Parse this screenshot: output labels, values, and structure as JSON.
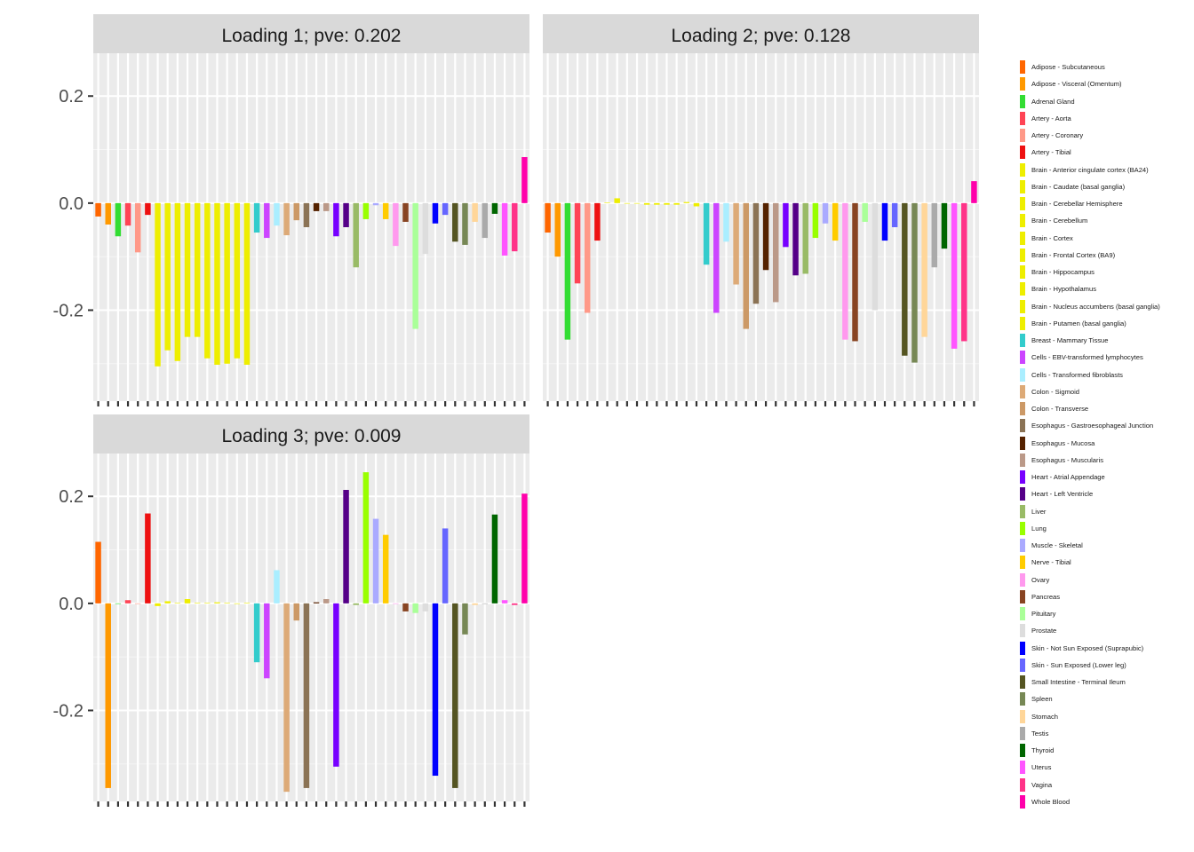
{
  "chart_data": {
    "type": "bar",
    "ylim": [
      -0.37,
      0.28
    ],
    "yticks": [
      0.2,
      0.0,
      -0.2
    ],
    "ytick_labels": [
      "0.2",
      "0.0",
      "-0.2"
    ],
    "grid": true,
    "legend_position": "right",
    "categories": [
      "Adipose - Subcutaneous",
      "Adipose - Visceral (Omentum)",
      "Adrenal Gland",
      "Artery - Aorta",
      "Artery - Coronary",
      "Artery - Tibial",
      "Brain - Anterior cingulate cortex (BA24)",
      "Brain - Caudate (basal ganglia)",
      "Brain - Cerebellar Hemisphere",
      "Brain - Cerebellum",
      "Brain - Cortex",
      "Brain - Frontal Cortex (BA9)",
      "Brain - Hippocampus",
      "Brain - Hypothalamus",
      "Brain - Nucleus accumbens (basal ganglia)",
      "Brain - Putamen (basal ganglia)",
      "Breast - Mammary Tissue",
      "Cells - EBV-transformed lymphocytes",
      "Cells - Transformed fibroblasts",
      "Colon - Sigmoid",
      "Colon - Transverse",
      "Esophagus - Gastroesophageal Junction",
      "Esophagus - Mucosa",
      "Esophagus - Muscularis",
      "Heart - Atrial Appendage",
      "Heart - Left Ventricle",
      "Liver",
      "Lung",
      "Muscle - Skeletal",
      "Nerve - Tibial",
      "Ovary",
      "Pancreas",
      "Pituitary",
      "Prostate",
      "Skin - Not Sun Exposed (Suprapubic)",
      "Skin - Sun Exposed (Lower leg)",
      "Small Intestine - Terminal Ileum",
      "Spleen",
      "Stomach",
      "Testis",
      "Thyroid",
      "Uterus",
      "Vagina",
      "Whole Blood"
    ],
    "colors": [
      "#FF6600",
      "#FF9900",
      "#33DD33",
      "#FF4455",
      "#FF9988",
      "#EE1111",
      "#EEEE00",
      "#EEEE00",
      "#EEEE00",
      "#EEEE00",
      "#EEEE00",
      "#EEEE00",
      "#EEEE00",
      "#EEEE00",
      "#EEEE00",
      "#EEEE00",
      "#33CCCC",
      "#CC44FF",
      "#AAEEFF",
      "#DDAA77",
      "#CC9966",
      "#8B7355",
      "#552200",
      "#BB9988",
      "#7700FF",
      "#550088",
      "#99BB66",
      "#99FF00",
      "#AAAAFF",
      "#FFCC00",
      "#FF99EE",
      "#884422",
      "#AAFF99",
      "#DDDDDD",
      "#0000FF",
      "#6666FF",
      "#555522",
      "#778855",
      "#FFD699",
      "#AAAAAA",
      "#006600",
      "#FF55FF",
      "#FF3388",
      "#FF00AA"
    ],
    "series": [
      {
        "name": "Loading 1",
        "title": "Loading 1; pve: 0.202",
        "values": [
          -0.025,
          -0.04,
          -0.062,
          -0.042,
          -0.092,
          -0.022,
          -0.305,
          -0.275,
          -0.295,
          -0.25,
          -0.25,
          -0.29,
          -0.302,
          -0.3,
          -0.29,
          -0.302,
          -0.055,
          -0.065,
          -0.042,
          -0.06,
          -0.032,
          -0.045,
          -0.015,
          -0.015,
          -0.062,
          -0.045,
          -0.12,
          -0.03,
          -0.004,
          -0.03,
          -0.08,
          -0.035,
          -0.235,
          -0.095,
          -0.038,
          -0.022,
          -0.072,
          -0.078,
          -0.035,
          -0.065,
          -0.02,
          -0.098,
          -0.09,
          0.086
        ]
      },
      {
        "name": "Loading 2",
        "title": "Loading 2; pve: 0.128",
        "values": [
          -0.055,
          -0.1,
          -0.255,
          -0.15,
          -0.205,
          -0.07,
          0.001,
          0.009,
          0.0,
          0.0,
          -0.003,
          -0.003,
          -0.003,
          -0.003,
          0.002,
          -0.006,
          -0.115,
          -0.205,
          -0.072,
          -0.152,
          -0.235,
          -0.188,
          -0.125,
          -0.185,
          -0.082,
          -0.135,
          -0.132,
          -0.065,
          -0.038,
          -0.07,
          -0.255,
          -0.258,
          -0.035,
          -0.2,
          -0.07,
          -0.045,
          -0.285,
          -0.298,
          -0.25,
          -0.12,
          -0.085,
          -0.272,
          -0.258,
          0.041
        ]
      },
      {
        "name": "Loading 3",
        "title": "Loading 3; pve: 0.009",
        "values": [
          0.115,
          -0.345,
          0.0,
          0.006,
          0.0,
          0.168,
          -0.005,
          0.004,
          0.001,
          0.008,
          0.001,
          0.001,
          0.002,
          0.001,
          0.0,
          0.001,
          -0.11,
          -0.14,
          0.062,
          -0.352,
          -0.032,
          -0.345,
          0.002,
          0.008,
          -0.305,
          0.212,
          -0.003,
          0.245,
          0.158,
          0.128,
          0.0,
          -0.015,
          -0.018,
          -0.015,
          -0.322,
          0.14,
          -0.345,
          -0.058,
          -0.003,
          0.0,
          0.166,
          0.006,
          -0.003,
          0.205
        ]
      }
    ]
  }
}
